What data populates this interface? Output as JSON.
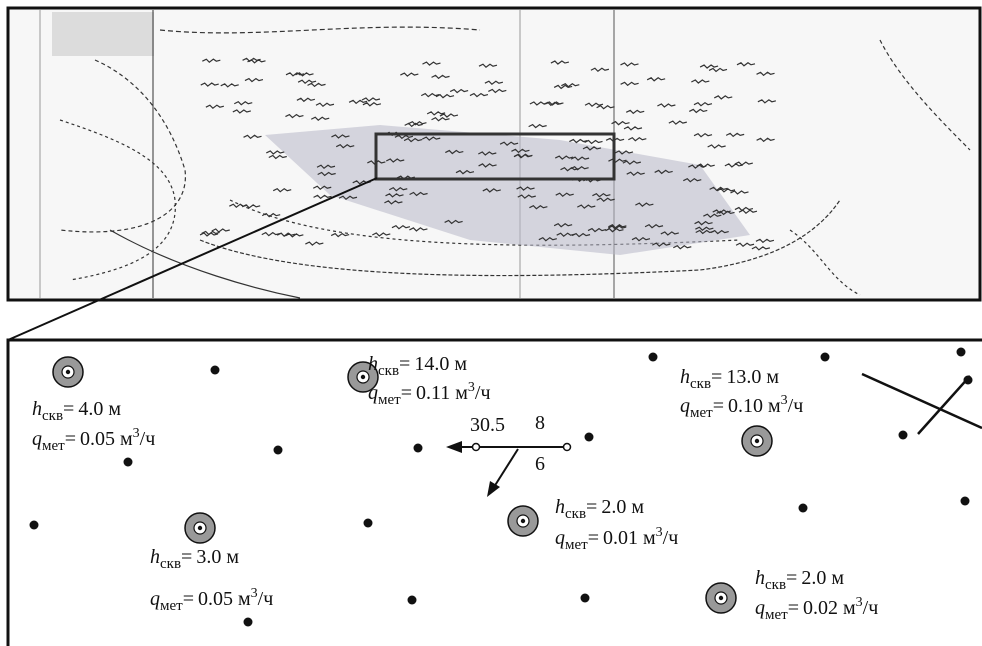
{
  "labels": {
    "h": "h",
    "h_sub": "скв",
    "q": "q",
    "q_sub": "мет",
    "eq": "=",
    "unit_h": "м",
    "unit_q": "м",
    "unit_q_sup": "3",
    "unit_q_tail": "/ч"
  },
  "wells": [
    {
      "h": "4.0",
      "q": "0.05"
    },
    {
      "h": "14.0",
      "q": "0.11"
    },
    {
      "h": "13.0",
      "q": "0.10"
    },
    {
      "h": "3.0",
      "q": "0.05"
    },
    {
      "h": "2.0",
      "q": "0.01"
    },
    {
      "h": "2.0",
      "q": "0.02"
    }
  ],
  "vector": {
    "length": "30.5",
    "upper": "8",
    "lower": "6"
  }
}
